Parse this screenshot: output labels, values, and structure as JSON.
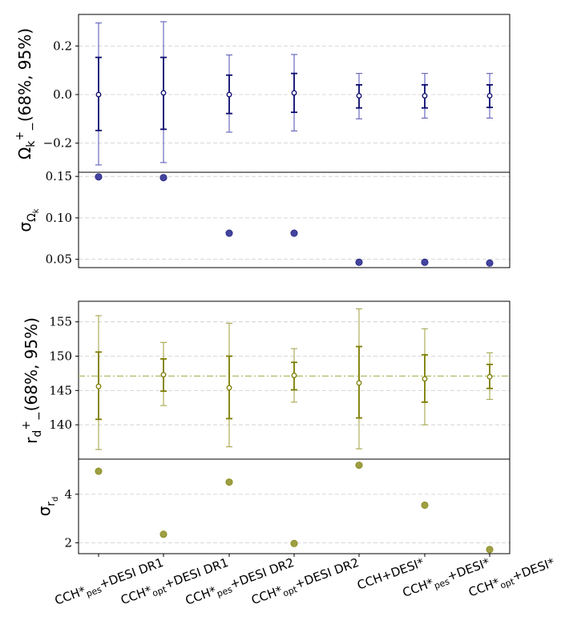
{
  "categories": [
    {
      "main": "CCH*",
      "sub": "pes",
      "tail": "+DESI DR1"
    },
    {
      "main": "CCH*",
      "sub": "opt",
      "tail": "+DESI DR1"
    },
    {
      "main": "CCH*",
      "sub": "pes",
      "tail": "+DESI DR2"
    },
    {
      "main": "CCH*",
      "sub": "opt",
      "tail": "+DESI DR2"
    },
    {
      "main": "CCH+DESI*",
      "sub": "",
      "tail": ""
    },
    {
      "main": "CCH*",
      "sub": "pes",
      "tail": "+DESI*"
    },
    {
      "main": "CCH*",
      "sub": "opt",
      "tail": "+DESI*"
    }
  ],
  "colors": {
    "omega_main": "#0a0a6e",
    "omega_light": "#6b6bc0",
    "omega_point": "#3a3a9a",
    "rd_main": "#7d7d00",
    "rd_light": "#adad5a",
    "rd_point": "#99993a",
    "rd_ref_line": "#b5c47a"
  },
  "chart_data": [
    {
      "id": "omega_k",
      "type": "errorbar",
      "ylabel": {
        "base": "Ω",
        "sub": "k",
        "sup": "+",
        "sub2": "−",
        "tail": "(68%, 95%)"
      },
      "yticks": [
        -0.2,
        0.0,
        0.2
      ],
      "ytick_labels": [
        "−0.2",
        "0.0",
        "0.2"
      ],
      "ylim": [
        -0.32,
        0.33
      ],
      "central": [
        0.0,
        0.007,
        0.0,
        0.007,
        -0.005,
        -0.005,
        -0.005
      ],
      "ci68": [
        [
          -0.148,
          0.153
        ],
        [
          -0.143,
          0.153
        ],
        [
          -0.078,
          0.08
        ],
        [
          -0.073,
          0.087
        ],
        [
          -0.055,
          0.04
        ],
        [
          -0.055,
          0.04
        ],
        [
          -0.053,
          0.04
        ]
      ],
      "ci95": [
        [
          -0.29,
          0.295
        ],
        [
          -0.28,
          0.3
        ],
        [
          -0.155,
          0.163
        ],
        [
          -0.15,
          0.165
        ],
        [
          -0.1,
          0.087
        ],
        [
          -0.097,
          0.087
        ],
        [
          -0.097,
          0.087
        ]
      ]
    },
    {
      "id": "sigma_omega_k",
      "type": "scatter",
      "ylabel": {
        "base": "σ",
        "sub": "Ω",
        "subsub": "k"
      },
      "yticks": [
        0.05,
        0.1,
        0.15
      ],
      "ytick_labels": [
        "0.05",
        "0.10",
        "0.15"
      ],
      "ylim": [
        0.04,
        0.155
      ],
      "values": [
        0.1495,
        0.1485,
        0.0815,
        0.0815,
        0.0465,
        0.0465,
        0.0455
      ]
    },
    {
      "id": "r_d",
      "type": "errorbar",
      "ylabel": {
        "base": "r",
        "sub": "d",
        "sup": "+",
        "sub2": "−",
        "tail": "(68%, 95%)"
      },
      "yticks": [
        140,
        145,
        150,
        155
      ],
      "ytick_labels": [
        "140",
        "145",
        "150",
        "155"
      ],
      "ylim": [
        135,
        158
      ],
      "reference_line": 147.1,
      "central": [
        145.6,
        147.3,
        145.4,
        147.2,
        146.1,
        146.7,
        147.0
      ],
      "ci68": [
        [
          140.8,
          150.6
        ],
        [
          144.9,
          149.6
        ],
        [
          140.9,
          150.0
        ],
        [
          145.1,
          149.1
        ],
        [
          141.0,
          151.4
        ],
        [
          143.3,
          150.2
        ],
        [
          145.3,
          148.8
        ]
      ],
      "ci95": [
        [
          136.4,
          155.9
        ],
        [
          142.8,
          152.0
        ],
        [
          136.8,
          154.8
        ],
        [
          143.3,
          151.1
        ],
        [
          136.5,
          156.9
        ],
        [
          140.0,
          154.0
        ],
        [
          143.7,
          150.5
        ]
      ]
    },
    {
      "id": "sigma_r_d",
      "type": "scatter",
      "ylabel": {
        "base": "σ",
        "sub": "r",
        "subsub": "d"
      },
      "yticks": [
        2,
        4
      ],
      "ytick_labels": [
        "2",
        "4"
      ],
      "ylim": [
        1.55,
        5.45
      ],
      "values": [
        4.95,
        2.35,
        4.5,
        1.97,
        5.2,
        3.55,
        1.72
      ]
    }
  ]
}
